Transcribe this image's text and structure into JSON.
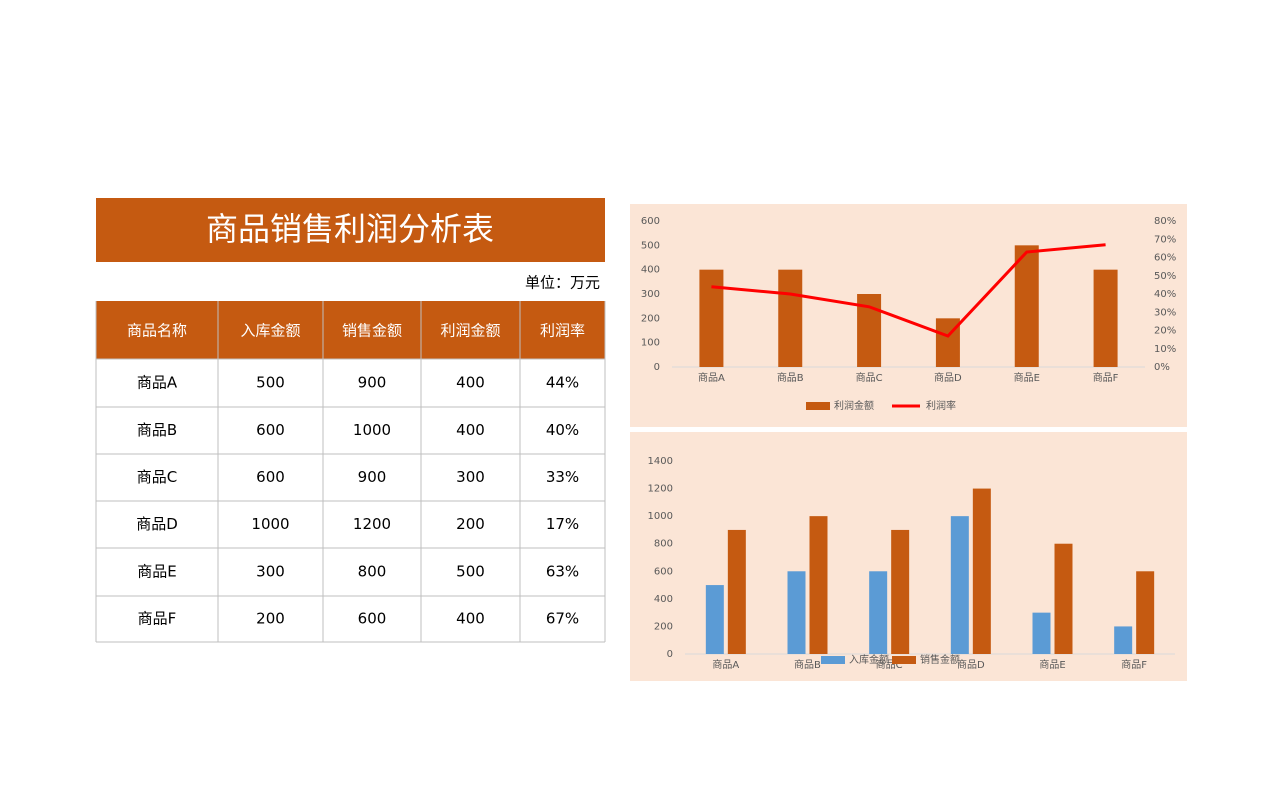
{
  "header": {
    "title": "商品销售利润分析表",
    "unit": "单位：万元"
  },
  "table": {
    "columns": [
      "商品名称",
      "入库金额",
      "销售金额",
      "利润金额",
      "利润率"
    ],
    "rows": [
      [
        "商品A",
        500,
        900,
        400,
        "44%"
      ],
      [
        "商品B",
        600,
        1000,
        400,
        "40%"
      ],
      [
        "商品C",
        600,
        900,
        300,
        "33%"
      ],
      [
        "商品D",
        1000,
        1200,
        200,
        "17%"
      ],
      [
        "商品E",
        300,
        800,
        500,
        "63%"
      ],
      [
        "商品F",
        200,
        600,
        400,
        "67%"
      ]
    ]
  },
  "chart_data": [
    {
      "type": "combo",
      "categories": [
        "商品A",
        "商品B",
        "商品C",
        "商品D",
        "商品E",
        "商品F"
      ],
      "series": [
        {
          "name": "利润金额",
          "type": "bar",
          "color": "#c55a11",
          "values": [
            400,
            400,
            300,
            200,
            500,
            400
          ]
        },
        {
          "name": "利润率",
          "type": "line",
          "axis": "y2",
          "color": "#ff0000",
          "values": [
            44,
            40,
            33,
            17,
            63,
            67
          ]
        }
      ],
      "ylim": [
        0,
        600
      ],
      "yticks": [
        0,
        100,
        200,
        300,
        400,
        500,
        600
      ],
      "y2lim": [
        0,
        80
      ],
      "y2ticks": [
        {
          "value": 0,
          "label": "0%"
        },
        {
          "value": 10,
          "label": "10%"
        },
        {
          "value": 20,
          "label": "20%"
        },
        {
          "value": 30,
          "label": "30%"
        },
        {
          "value": 40,
          "label": "40%"
        },
        {
          "value": 50,
          "label": "50%"
        },
        {
          "value": 60,
          "label": "60%"
        },
        {
          "value": 70,
          "label": "70%"
        },
        {
          "value": 80,
          "label": "80%"
        }
      ],
      "legend": "bottom",
      "grid": false
    },
    {
      "type": "bar",
      "categories": [
        "商品A",
        "商品B",
        "商品C",
        "商品D",
        "商品E",
        "商品F"
      ],
      "series": [
        {
          "name": "入库金额",
          "color": "#5b9bd5",
          "values": [
            500,
            600,
            600,
            1000,
            300,
            200
          ]
        },
        {
          "name": "销售金额",
          "color": "#c55a11",
          "values": [
            900,
            1000,
            900,
            1200,
            800,
            600
          ]
        }
      ],
      "ylim": [
        0,
        1400
      ],
      "yticks": [
        0,
        200,
        400,
        600,
        800,
        1000,
        1200,
        1400
      ],
      "legend": "bottom",
      "grid": false
    }
  ]
}
